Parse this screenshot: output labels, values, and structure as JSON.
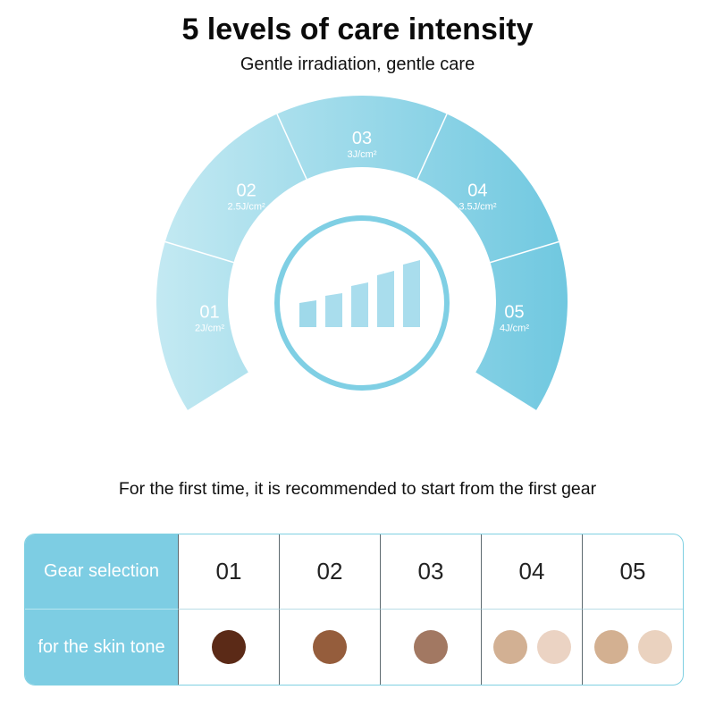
{
  "header": {
    "title": "5 levels of care intensity",
    "subtitle": "Gentle irradiation, gentle care"
  },
  "dial": {
    "segments": [
      {
        "level": "01",
        "energy": "2J/cm²"
      },
      {
        "level": "02",
        "energy": "2.5J/cm²"
      },
      {
        "level": "03",
        "energy": "3J/cm²"
      },
      {
        "level": "04",
        "energy": "3.5J/cm²"
      },
      {
        "level": "05",
        "energy": "4J/cm²"
      }
    ],
    "icon": "signal-strength-bars-icon",
    "colors": {
      "light": "#c3e9f2",
      "dark": "#70c8e0"
    }
  },
  "note": "For the first time, it is recommended to start from the first gear",
  "table": {
    "row1_label": "Gear selection",
    "row2_label": "for the skin tone",
    "gears": [
      {
        "label": "01",
        "tones": [
          "#5b2a17"
        ]
      },
      {
        "label": "02",
        "tones": [
          "#955d3c"
        ]
      },
      {
        "label": "03",
        "tones": [
          "#a27862"
        ]
      },
      {
        "label": "04",
        "tones": [
          "#d2b093",
          "#ebd3c3"
        ]
      },
      {
        "label": "05",
        "tones": [
          "#d3b091",
          "#ead2bf"
        ]
      }
    ],
    "colors": {
      "header_bg": "#7dcde3"
    }
  }
}
